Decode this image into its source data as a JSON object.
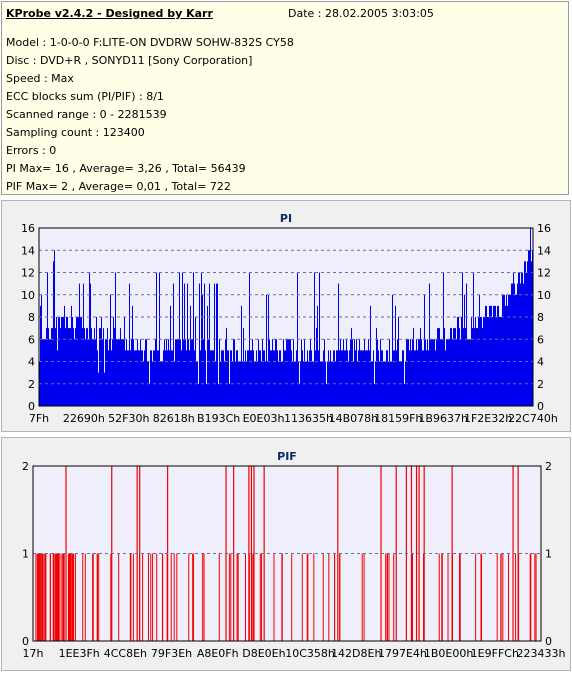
{
  "info": {
    "title": "KProbe v2.4.2 - Designed by Karr",
    "date": "Date : 28.02.2005 3:03:05",
    "lines": [
      "Model : 1-0-0-0 F:LITE-ON DVDRW SOHW-832S  CY58",
      "Disc : DVD+R , SONYD11 [Sony Corporation]",
      "Speed : Max",
      "ECC blocks sum (PI/PIF) : 8/1",
      "Scanned range : 0 - 2281539",
      "Sampling count : 123400",
      "Errors : 0",
      "PI Max= 16 , Average= 3,26 , Total= 56439",
      "PIF Max= 2 , Average= 0,01 , Total= 722"
    ]
  },
  "colors": {
    "pi_fill": "#0000f0",
    "pif_line": "#f00000",
    "plot_bg": "#efeffc",
    "grid": "#6d6d9a",
    "title": "#0a2a6a"
  },
  "chart_data": [
    {
      "type": "bar",
      "title": "PI",
      "ylim": [
        0,
        16
      ],
      "yticks": [
        0,
        2,
        4,
        6,
        8,
        10,
        12,
        14,
        16
      ],
      "xticks": [
        "7Fh",
        "22690h",
        "52F30h",
        "82618h",
        "B193Ch",
        "E0E03h",
        "113635h",
        "14B078h",
        "18159Fh",
        "1B9637h",
        "1F2E32h",
        "22C740h"
      ],
      "profile": {
        "x_fraction": [
          0.0,
          0.03,
          0.08,
          0.15,
          0.25,
          0.4,
          0.55,
          0.7,
          0.8,
          0.88,
          0.93,
          0.97,
          1.0
        ],
        "typical": [
          5,
          8,
          7,
          6,
          5,
          5,
          5,
          5,
          6,
          7,
          9,
          11,
          14
        ],
        "peak": [
          9,
          14,
          12,
          12,
          12,
          12,
          12,
          12,
          12,
          12,
          13,
          14,
          16
        ]
      },
      "grid": true
    },
    {
      "type": "bar",
      "title": "PIF",
      "ylim": [
        0,
        2
      ],
      "yticks": [
        0,
        1,
        2
      ],
      "xticks": [
        "17h",
        "1EE3Fh",
        "4CC8Eh",
        "79F3Eh",
        "A8E0Fh",
        "D8E0Eh",
        "10C358h",
        "142D8Eh",
        "1797E4h",
        "1B0E00h",
        "1E9FFCh",
        "223433h"
      ],
      "values_description_counts": {
        "value_1": "sparse spikes",
        "value_2": "occasional spikes"
      },
      "spikes_at_2_fraction": [
        0.065,
        0.155,
        0.205,
        0.21,
        0.265,
        0.38,
        0.395,
        0.425,
        0.43,
        0.435,
        0.455,
        0.6,
        0.685,
        0.715,
        0.735,
        0.745,
        0.755,
        0.76,
        0.77,
        0.825,
        0.945,
        0.955
      ],
      "grid": true
    }
  ]
}
